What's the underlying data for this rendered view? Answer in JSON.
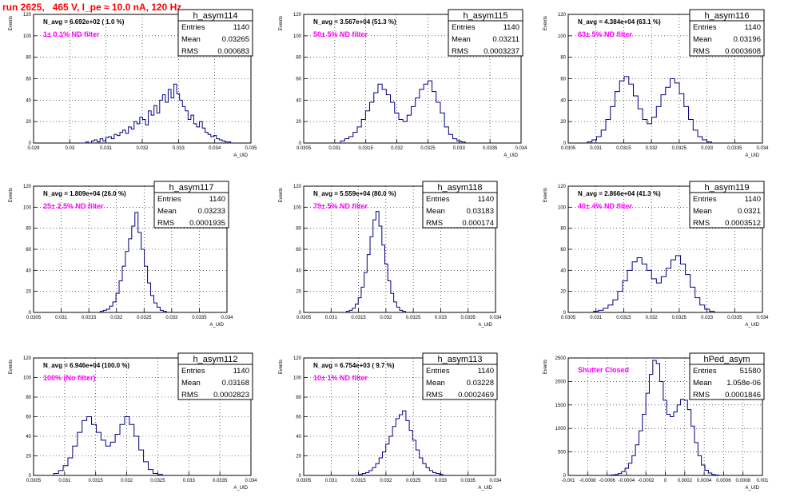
{
  "title": "run 2625,   465 V, I_pe ≈ 10.0 nA, 120 Hz",
  "colors": {
    "histogram": "#000080",
    "annotation_filter": "#ff00ff",
    "title": "#ff0000"
  },
  "chart_data": [
    {
      "type": "histogram",
      "name": "h_asym114",
      "ylabel": "Events",
      "xlabel": "A_UID",
      "stats": {
        "entries": "1140",
        "mean": "0.03265",
        "rms": "0.000683"
      },
      "navg": "N_avg = 6.692e+02 ( 1.0 %)",
      "filter_label": "1± 0.1% ND filter",
      "grid": true,
      "xlim": [
        0.029,
        0.035
      ],
      "ylim": [
        0,
        120
      ],
      "xticks": [
        "0.029",
        "0.03",
        "0.031",
        "0.032",
        "0.033",
        "0.034",
        "0.035"
      ],
      "yticks": [
        "0",
        "20",
        "40",
        "60",
        "80",
        "100",
        "120"
      ],
      "values": [
        0,
        0,
        1,
        0,
        2,
        3,
        1,
        4,
        2,
        5,
        6,
        4,
        8,
        7,
        10,
        12,
        9,
        15,
        13,
        20,
        18,
        24,
        22,
        17,
        30,
        26,
        35,
        28,
        40,
        45,
        38,
        50,
        42,
        55,
        46,
        40,
        34,
        30,
        22,
        26,
        18,
        15,
        20,
        14,
        10,
        8,
        6,
        7,
        4,
        3,
        2,
        1,
        1,
        0
      ]
    },
    {
      "type": "histogram",
      "name": "h_asym115",
      "ylabel": "Events",
      "xlabel": "A_UID",
      "stats": {
        "entries": "1140",
        "mean": "0.03211",
        "rms": "0.0003237"
      },
      "navg": "N_avg = 3.567e+04 (51.3 %)",
      "filter_label": "50± 5% ND filter",
      "grid": true,
      "xlim": [
        0.0305,
        0.034
      ],
      "ylim": [
        0,
        120
      ],
      "xticks": [
        "0.0305",
        "0.031",
        "0.0315",
        "0.032",
        "0.0325",
        "0.033",
        "0.0335",
        "0.034"
      ],
      "yticks": [
        "0",
        "20",
        "40",
        "60",
        "80",
        "100",
        "120"
      ],
      "values": [
        2,
        4,
        6,
        10,
        15,
        22,
        30,
        38,
        47,
        55,
        50,
        45,
        38,
        28,
        22,
        20,
        26,
        34,
        42,
        50,
        55,
        58,
        48,
        38,
        28,
        15,
        8,
        4,
        2,
        1
      ]
    },
    {
      "type": "histogram",
      "name": "h_asym116",
      "ylabel": "Events",
      "xlabel": "A_UID",
      "stats": {
        "entries": "1140",
        "mean": "0.03196",
        "rms": "0.0003608"
      },
      "navg": "N_avg = 4.384e+04 (63.1 %)",
      "filter_label": "63± 5% ND filter",
      "grid": true,
      "xlim": [
        0.0305,
        0.034
      ],
      "ylim": [
        0,
        120
      ],
      "xticks": [
        "0.0305",
        "0.031",
        "0.0315",
        "0.032",
        "0.0325",
        "0.033",
        "0.0335",
        "0.034"
      ],
      "yticks": [
        "0",
        "20",
        "40",
        "60",
        "80",
        "100",
        "120"
      ],
      "values": [
        1,
        3,
        6,
        12,
        22,
        34,
        48,
        58,
        62,
        55,
        44,
        32,
        22,
        18,
        24,
        34,
        45,
        52,
        60,
        56,
        46,
        34,
        22,
        12,
        6,
        3,
        1
      ]
    },
    {
      "type": "histogram",
      "name": "h_asym117",
      "ylabel": "Events",
      "xlabel": "A_UID",
      "stats": {
        "entries": "1140",
        "mean": "0.03233",
        "rms": "0.0001935"
      },
      "navg": "N_avg = 1.809e+04 (26.0 %)",
      "filter_label": "25± 2.5% ND filter",
      "grid": true,
      "xlim": [
        0.0305,
        0.034
      ],
      "ylim": [
        0,
        120
      ],
      "xticks": [
        "0.0305",
        "0.031",
        "0.0315",
        "0.032",
        "0.0325",
        "0.033",
        "0.0335",
        "0.034"
      ],
      "yticks": [
        "0",
        "20",
        "40",
        "60",
        "80",
        "100",
        "120"
      ],
      "values": [
        1,
        2,
        3,
        6,
        10,
        18,
        30,
        44,
        58,
        70,
        82,
        95,
        76,
        60,
        44,
        28,
        16,
        9,
        5,
        2,
        1
      ]
    },
    {
      "type": "histogram",
      "name": "h_asym118",
      "ylabel": "Events",
      "xlabel": "A_UID",
      "stats": {
        "entries": "1140",
        "mean": "0.03183",
        "rms": "0.000174"
      },
      "navg": "N_avg = 5.559e+04 (80.0 %)",
      "filter_label": "79± 5% ND filter",
      "grid": true,
      "xlim": [
        0.0305,
        0.034
      ],
      "ylim": [
        0,
        120
      ],
      "xticks": [
        "0.0305",
        "0.031",
        "0.0315",
        "0.032",
        "0.0325",
        "0.033",
        "0.0335",
        "0.034"
      ],
      "yticks": [
        "0",
        "20",
        "40",
        "60",
        "80",
        "100",
        "120"
      ],
      "values": [
        1,
        2,
        4,
        8,
        14,
        24,
        38,
        55,
        72,
        88,
        96,
        82,
        64,
        46,
        30,
        18,
        10,
        5,
        2,
        1
      ]
    },
    {
      "type": "histogram",
      "name": "h_asym119",
      "ylabel": "Events",
      "xlabel": "A_UID",
      "stats": {
        "entries": "1140",
        "mean": "0.0321",
        "rms": "0.0003512"
      },
      "navg": "N_avg = 2.866e+04 (41.3 %)",
      "filter_label": "40± 4% ND filter",
      "grid": true,
      "xlim": [
        0.0305,
        0.034
      ],
      "ylim": [
        0,
        120
      ],
      "xticks": [
        "0.0305",
        "0.031",
        "0.0315",
        "0.032",
        "0.0325",
        "0.033",
        "0.0335",
        "0.034"
      ],
      "yticks": [
        "0",
        "20",
        "40",
        "60",
        "80",
        "100",
        "120"
      ],
      "values": [
        1,
        2,
        4,
        7,
        12,
        20,
        30,
        40,
        48,
        52,
        46,
        40,
        32,
        28,
        34,
        42,
        50,
        54,
        46,
        36,
        24,
        14,
        7,
        3,
        1
      ]
    },
    {
      "type": "histogram",
      "name": "h_asym112",
      "ylabel": "Events",
      "xlabel": "A_UID",
      "stats": {
        "entries": "1140",
        "mean": "0.03168",
        "rms": "0.0002823"
      },
      "navg": "N_avg = 6.946e+04 (100.0 %)",
      "filter_label": "100% (No filter)",
      "grid": true,
      "xlim": [
        0.0305,
        0.034
      ],
      "ylim": [
        0,
        120
      ],
      "xticks": [
        "0.0305",
        "0.031",
        "0.0315",
        "0.032",
        "0.0325",
        "0.033",
        "0.0335",
        "0.034"
      ],
      "yticks": [
        "0",
        "20",
        "40",
        "60",
        "80",
        "100",
        "120"
      ],
      "values": [
        2,
        5,
        10,
        18,
        30,
        44,
        56,
        60,
        52,
        44,
        36,
        30,
        34,
        42,
        52,
        60,
        52,
        40,
        26,
        14,
        6,
        2,
        1
      ]
    },
    {
      "type": "histogram",
      "name": "h_asym113",
      "ylabel": "Events",
      "xlabel": "A_UID",
      "stats": {
        "entries": "1140",
        "mean": "0.03228",
        "rms": "0.0002469"
      },
      "navg": "N_avg = 6.754e+03 ( 9.7 %)",
      "filter_label": "10± 1% ND filter",
      "grid": true,
      "xlim": [
        0.0305,
        0.034
      ],
      "ylim": [
        0,
        120
      ],
      "xticks": [
        "0.0305",
        "0.031",
        "0.0315",
        "0.032",
        "0.0325",
        "0.033",
        "0.0335",
        "0.034"
      ],
      "yticks": [
        "0",
        "20",
        "40",
        "60",
        "80",
        "100",
        "120"
      ],
      "values": [
        1,
        2,
        3,
        5,
        8,
        12,
        18,
        24,
        32,
        40,
        50,
        58,
        62,
        66,
        56,
        46,
        36,
        26,
        18,
        12,
        8,
        5,
        3,
        2,
        1
      ]
    },
    {
      "type": "histogram",
      "name": "hPed_asym",
      "ylabel": "Events",
      "xlabel": "A_UID",
      "stats": {
        "entries": "51580",
        "mean": "1.058e-06",
        "rms": "0.0001846"
      },
      "navg": "",
      "filter_label": "Shutter Closed",
      "grid": true,
      "xlim": [
        -0.001,
        0.001
      ],
      "ylim": [
        0,
        2500
      ],
      "xticks": [
        "-0.001",
        "-0.0008",
        "-0.0006",
        "-0.0004",
        "-0.0002",
        "0",
        "0.0002",
        "0.0004",
        "0.0006",
        "0.0008",
        "0.001"
      ],
      "yticks": [
        "0",
        "500",
        "1000",
        "1500",
        "2000",
        "2500"
      ],
      "values": [
        5,
        10,
        20,
        40,
        80,
        150,
        260,
        420,
        650,
        950,
        1300,
        1750,
        2150,
        2450,
        2380,
        2000,
        1600,
        1300,
        1250,
        1350,
        1500,
        1620,
        1600,
        1400,
        1050,
        700,
        420,
        220,
        110,
        50,
        20,
        8
      ]
    }
  ]
}
